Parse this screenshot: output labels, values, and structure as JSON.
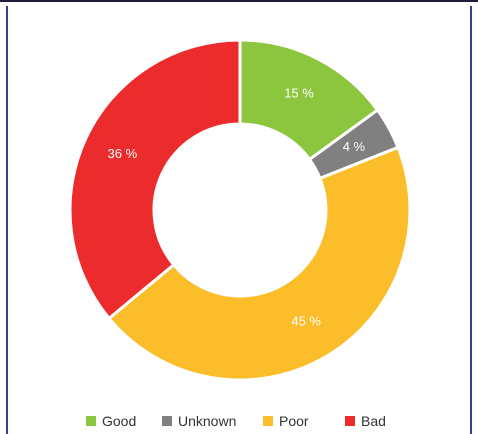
{
  "chart_data": {
    "type": "pie",
    "variant": "donut",
    "title": "",
    "legend_position": "bottom",
    "slices": [
      {
        "label": "Good",
        "value": 15,
        "display": "15 %",
        "color": "#8cc63f"
      },
      {
        "label": "Unknown",
        "value": 4,
        "display": "4 %",
        "color": "#808080"
      },
      {
        "label": "Poor",
        "value": 45,
        "display": "45 %",
        "color": "#fbbd29"
      },
      {
        "label": "Bad",
        "value": 36,
        "display": "36 %",
        "color": "#ec2c2c"
      }
    ]
  }
}
